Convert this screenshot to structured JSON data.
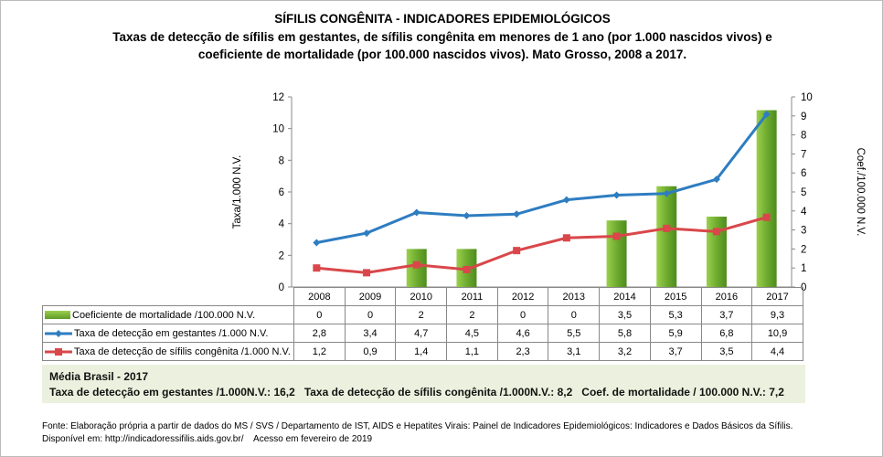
{
  "title": "SÍFILIS CONGÊNITA - INDICADORES EPIDEMIOLÓGICOS",
  "subtitle_line1": "Taxas de detecção de sífilis em gestantes, de sífilis congênita em menores de 1 ano (por 1.000 nascidos vivos) e",
  "subtitle_line2": "coeficiente de mortalidade (por 100.000 nascidos vivos). Mato Grosso, 2008 a 2017.",
  "chart_data": {
    "type": "bar+line",
    "categories": [
      "2008",
      "2009",
      "2010",
      "2011",
      "2012",
      "2013",
      "2014",
      "2015",
      "2016",
      "2017"
    ],
    "ylabel": "Taxa/1.000 N.V.",
    "y2label": "Coef./100.000 N.V.",
    "ylim": [
      0,
      12
    ],
    "yticks": [
      "0",
      "2",
      "4",
      "6",
      "8",
      "10",
      "12"
    ],
    "y2lim": [
      0,
      10
    ],
    "y2ticks": [
      "0",
      "1",
      "2",
      "3",
      "4",
      "5",
      "6",
      "7",
      "8",
      "9",
      "10"
    ],
    "series": [
      {
        "name": "Coeficiente de mortalidade /100.000 N.V.",
        "type": "bar",
        "axis": "right",
        "color": "#7ab33e",
        "values": [
          0,
          0,
          2,
          2,
          0,
          0,
          3.5,
          5.3,
          3.7,
          9.3
        ],
        "labels": [
          "0",
          "0",
          "2",
          "2",
          "0",
          "0",
          "3,5",
          "5,3",
          "3,7",
          "9,3"
        ]
      },
      {
        "name": "Taxa de detecção em gestantes /1.000 N.V.",
        "type": "line",
        "axis": "left",
        "color": "#2e7dc1",
        "values": [
          2.8,
          3.4,
          4.7,
          4.5,
          4.6,
          5.5,
          5.8,
          5.9,
          6.8,
          10.9
        ],
        "labels": [
          "2,8",
          "3,4",
          "4,7",
          "4,5",
          "4,6",
          "5,5",
          "5,8",
          "5,9",
          "6,8",
          "10,9"
        ]
      },
      {
        "name": "Taxa de detecção de sífilis congênita /1.000 N.V.",
        "type": "line",
        "axis": "left",
        "color": "#d9474a",
        "values": [
          1.2,
          0.9,
          1.4,
          1.1,
          2.3,
          3.1,
          3.2,
          3.7,
          3.5,
          4.4
        ],
        "labels": [
          "1,2",
          "0,9",
          "1,4",
          "1,1",
          "2,3",
          "3,1",
          "3,2",
          "3,7",
          "3,5",
          "4,4"
        ]
      }
    ],
    "grid": false,
    "legend": "data-table"
  },
  "media": {
    "title": "Média Brasil - 2017",
    "text": "Taxa de detecção em gestantes /1.000N.V.: 16,2   Taxa de detecção de sífilis congênita /1.000N.V.: 8,2   Coef. de mortalidade / 100.000 N.V.: 7,2"
  },
  "fonte_line1": "Fonte: Elaboração própria a partir de dados do MS / SVS / Departamento de IST, AIDS e Hepatites Virais: Painel de Indicadores Epidemiológicos: Indicadores e Dados Básicos da Sífilis.",
  "fonte_line2": "Disponível em: http://indicadoressifilis.aids.gov.br/    Acesso em fevereiro de 2019"
}
